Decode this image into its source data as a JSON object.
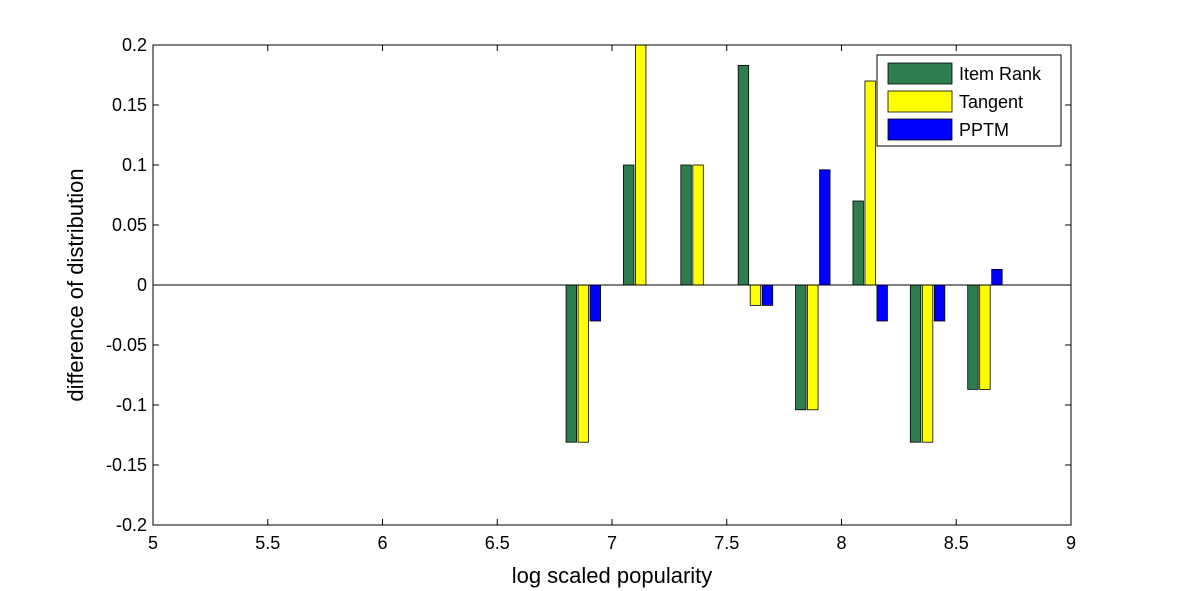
{
  "chart_data": {
    "type": "bar",
    "xlabel": "log scaled popularity",
    "ylabel": "difference of distribution",
    "xlim": [
      5,
      9
    ],
    "ylim": [
      -0.2,
      0.2
    ],
    "xticks": [
      "5",
      "5.5",
      "6",
      "6.5",
      "7",
      "7.5",
      "8",
      "8.5",
      "9"
    ],
    "yticks": [
      "-0.2",
      "-0.15",
      "-0.1",
      "-0.05",
      "0",
      "0.05",
      "0.1",
      "0.15",
      "0.2"
    ],
    "categories": [
      6.875,
      7.125,
      7.375,
      7.625,
      7.875,
      8.125,
      8.375,
      8.625
    ],
    "series": [
      {
        "name": "Item Rank",
        "color": "#2e7d4f",
        "values": [
          -0.131,
          0.1,
          0.1,
          0.183,
          -0.104,
          0.07,
          -0.131,
          -0.087
        ]
      },
      {
        "name": "Tangent",
        "color": "#ffff00",
        "values": [
          -0.131,
          0.2,
          0.1,
          -0.017,
          -0.104,
          0.17,
          -0.131,
          -0.087
        ]
      },
      {
        "name": "PPTM",
        "color": "#0000ff",
        "values": [
          -0.03,
          0,
          0,
          -0.017,
          0.096,
          -0.03,
          -0.03,
          0.013
        ]
      }
    ],
    "legend_position": "top-right",
    "grid": false
  }
}
